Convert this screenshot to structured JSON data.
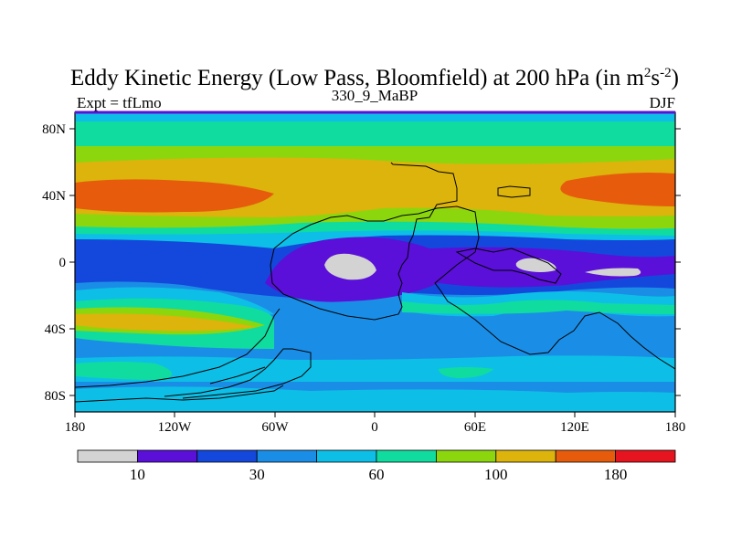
{
  "title": {
    "main": "Eddy Kinetic Energy (Low Pass, Bloomfield) at 200 hPa (in m",
    "sup1": "2",
    "mid": "s",
    "sup2": "-2",
    "close": ")"
  },
  "left_label": "Expt = tfLmo",
  "center_label": "330_9_MaBP",
  "right_label": "DJF",
  "lat_ticks": [
    "80N",
    "40N",
    "0",
    "40S",
    "80S"
  ],
  "lon_ticks": [
    "180",
    "120W",
    "60W",
    "0",
    "60E",
    "120E",
    "180"
  ],
  "colorbar": {
    "colors": [
      "#d3d3d3",
      "#5a10d8",
      "#1448dc",
      "#1a8ee6",
      "#0dbfe6",
      "#10dca0",
      "#8cd60e",
      "#dcb40c",
      "#e65c0c",
      "#e6141e"
    ],
    "labels": [
      "10",
      "30",
      "60",
      "100",
      "180"
    ]
  },
  "map_data": {
    "type": "contour-map",
    "field": "eddy kinetic energy",
    "units": "m2 s-2",
    "level": "200 hPa",
    "season": "DJF",
    "lon_range": [
      -180,
      180
    ],
    "lat_range": [
      -90,
      90
    ]
  }
}
